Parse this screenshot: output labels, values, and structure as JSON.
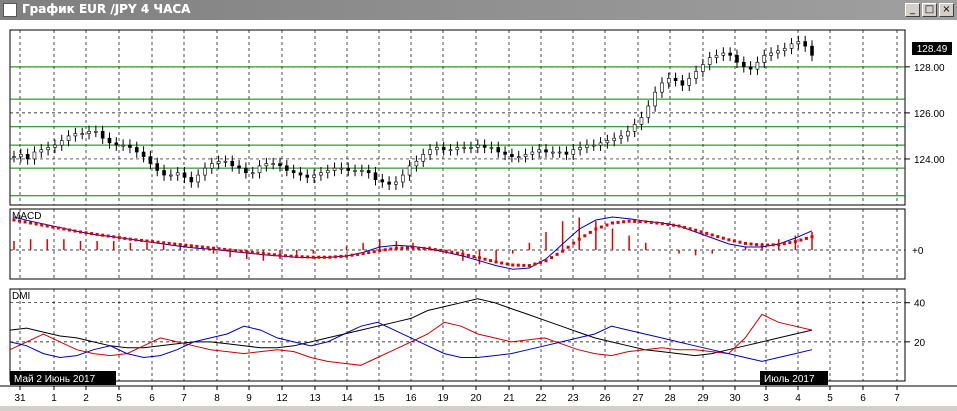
{
  "window": {
    "title": "График EUR /JPY  4 ЧАСА",
    "buttons": {
      "minimize": "_",
      "maximize": "□",
      "close": "×"
    }
  },
  "chart": {
    "price_panel": {
      "current_price_label": "128.49",
      "y_ticks": [
        "128.00",
        "126.00",
        "124.00"
      ],
      "y_tick_values": [
        128,
        126,
        124
      ],
      "y_range": [
        122.0,
        129.6
      ],
      "hlines_green": [
        128.0,
        126.6,
        125.4,
        124.6,
        123.6,
        122.4
      ],
      "close_series": [
        124.1,
        124.2,
        124.0,
        124.3,
        124.4,
        124.5,
        124.6,
        124.8,
        125.0,
        125.1,
        125.1,
        125.2,
        125.2,
        124.9,
        124.7,
        124.6,
        124.6,
        124.5,
        124.3,
        124.1,
        123.8,
        123.5,
        123.3,
        123.3,
        123.4,
        123.2,
        123.0,
        123.3,
        123.6,
        123.8,
        123.9,
        123.9,
        123.7,
        123.6,
        123.4,
        123.4,
        123.7,
        123.8,
        123.8,
        123.7,
        123.5,
        123.4,
        123.3,
        123.2,
        123.3,
        123.4,
        123.5,
        123.6,
        123.6,
        123.5,
        123.5,
        123.5,
        123.4,
        123.1,
        123.0,
        122.9,
        123.0,
        123.3,
        123.7,
        123.9,
        124.2,
        124.4,
        124.5,
        124.4,
        124.4,
        124.5,
        124.5,
        124.5,
        124.6,
        124.5,
        124.5,
        124.3,
        124.2,
        124.1,
        124.1,
        124.2,
        124.3,
        124.4,
        124.3,
        124.3,
        124.3,
        124.2,
        124.4,
        124.5,
        124.6,
        124.6,
        124.7,
        124.8,
        124.9,
        125.0,
        125.2,
        125.5,
        125.8,
        126.3,
        126.9,
        127.3,
        127.5,
        127.4,
        127.2,
        127.5,
        127.8,
        128.1,
        128.4,
        128.5,
        128.6,
        128.5,
        128.2,
        128.0,
        127.9,
        128.2,
        128.5,
        128.6,
        128.7,
        128.8,
        129.0,
        129.1,
        128.9,
        128.5
      ]
    },
    "macd_panel": {
      "label": "MACD",
      "zero_label": "+0",
      "macd_line": [
        0.55,
        0.48,
        0.42,
        0.36,
        0.3,
        0.25,
        0.22,
        0.18,
        0.14,
        0.1,
        0.06,
        0.03,
        0.01,
        -0.02,
        -0.05,
        -0.08,
        -0.1,
        -0.12,
        -0.13,
        -0.12,
        -0.1,
        -0.04,
        0.05,
        0.08,
        0.06,
        0.02,
        -0.04,
        -0.1,
        -0.18,
        -0.26,
        -0.32,
        -0.3,
        -0.15,
        0.1,
        0.35,
        0.5,
        0.55,
        0.52,
        0.48,
        0.45,
        0.4,
        0.3,
        0.2,
        0.1,
        0.05,
        0.05,
        0.1,
        0.2,
        0.32
      ],
      "signal_line": [
        0.5,
        0.45,
        0.4,
        0.35,
        0.3,
        0.26,
        0.22,
        0.18,
        0.15,
        0.12,
        0.09,
        0.06,
        0.03,
        0.0,
        -0.03,
        -0.06,
        -0.09,
        -0.11,
        -0.12,
        -0.12,
        -0.1,
        -0.06,
        -0.01,
        0.03,
        0.04,
        0.02,
        -0.02,
        -0.07,
        -0.13,
        -0.2,
        -0.25,
        -0.26,
        -0.18,
        -0.02,
        0.18,
        0.35,
        0.45,
        0.48,
        0.47,
        0.44,
        0.4,
        0.33,
        0.25,
        0.17,
        0.11,
        0.08,
        0.09,
        0.14,
        0.22
      ],
      "histogram": [
        0.05,
        0.06,
        0.06,
        0.06,
        0.05,
        0.05,
        0.05,
        0.04,
        0.04,
        0.03,
        0.02,
        0.0,
        -0.02,
        -0.04,
        -0.05,
        -0.06,
        -0.05,
        -0.04,
        -0.02,
        0.0,
        0.02,
        0.04,
        0.06,
        0.05,
        0.04,
        0.02,
        -0.02,
        -0.06,
        -0.08,
        -0.06,
        -0.02,
        0.04,
        0.1,
        0.16,
        0.18,
        0.16,
        0.12,
        0.08,
        0.04,
        0.0,
        -0.02,
        -0.03,
        -0.02,
        0.0,
        0.02,
        0.04,
        0.06,
        0.08,
        0.1
      ]
    },
    "dmi_panel": {
      "label": "DMI",
      "y_ticks": [
        "40",
        "20"
      ],
      "y_tick_values": [
        40,
        20
      ],
      "y_range": [
        0,
        47
      ],
      "adx": [
        26,
        27,
        25,
        23,
        22,
        20,
        18,
        17,
        17,
        18,
        19,
        20,
        20,
        19,
        18,
        17,
        17,
        18,
        20,
        22,
        24,
        26,
        28,
        30,
        32,
        36,
        38,
        40,
        42,
        40,
        37,
        34,
        31,
        28,
        25,
        22,
        20,
        18,
        16,
        15,
        14,
        13,
        14,
        16,
        18,
        20,
        22,
        24,
        26
      ],
      "plus_di": [
        16,
        20,
        24,
        20,
        16,
        14,
        13,
        14,
        18,
        22,
        20,
        18,
        16,
        15,
        14,
        15,
        16,
        15,
        12,
        10,
        9,
        8,
        12,
        16,
        20,
        24,
        30,
        28,
        24,
        22,
        20,
        21,
        22,
        19,
        16,
        14,
        13,
        15,
        16,
        17,
        16,
        16,
        15,
        14,
        22,
        34,
        30,
        28,
        26
      ],
      "minus_di": [
        20,
        18,
        14,
        12,
        13,
        16,
        18,
        14,
        12,
        13,
        16,
        20,
        22,
        24,
        28,
        26,
        22,
        20,
        18,
        20,
        24,
        28,
        30,
        26,
        22,
        18,
        14,
        12,
        12,
        13,
        14,
        16,
        18,
        20,
        22,
        24,
        28,
        26,
        24,
        22,
        20,
        18,
        16,
        14,
        12,
        10,
        12,
        14,
        16
      ]
    },
    "x_axis": {
      "labels": [
        "31",
        "1",
        "2",
        "5",
        "6",
        "7",
        "8",
        "9",
        "12",
        "13",
        "14",
        "15",
        "16",
        "19",
        "20",
        "21",
        "22",
        "23",
        "26",
        "27",
        "28",
        "29",
        "30",
        "3",
        "4",
        "5",
        "6",
        "7"
      ],
      "period_start_label": "Май 2 Июнь 2017",
      "period_end_label": "Июль 2017"
    },
    "colors": {
      "price_line": "#000000",
      "green_hline": "#008000",
      "macd_line": "#0000c0",
      "signal_dots": "#e00000",
      "histogram": "#e00000",
      "adx": "#000000",
      "plus_di": "#d00000",
      "minus_di": "#0000c0"
    }
  }
}
